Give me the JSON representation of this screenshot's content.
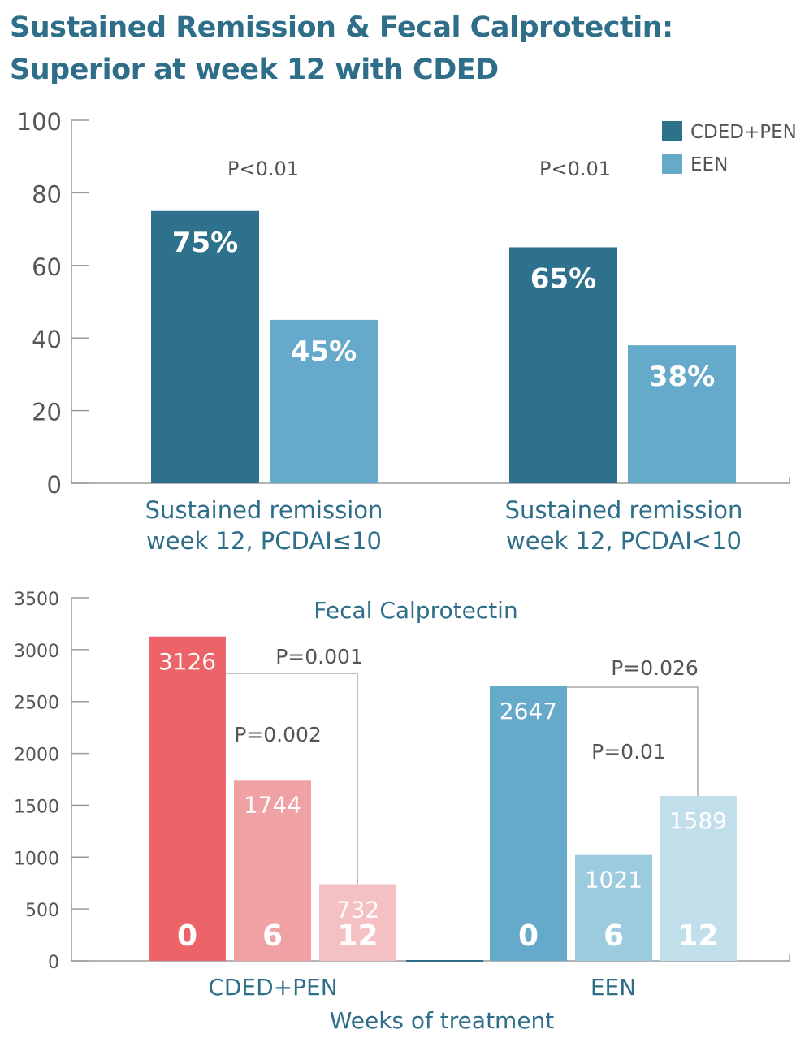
{
  "title": {
    "line1": "Sustained Remission & Fecal Calprotectin:",
    "line2": "Superior at week 12 with CDED"
  },
  "colors": {
    "title": "#2e6e89",
    "cded_pen": "#2e718c",
    "een": "#66aacb",
    "cded_week0": "#ec6468",
    "cded_week6": "#f0a1a4",
    "cded_week12": "#f4c0c2",
    "een_week0": "#66aacb",
    "een_week6": "#9ccbe0",
    "een_week12": "#c0dfea",
    "axis": "#9a9a9a",
    "text_gray": "#555555",
    "text_teal": "#2e6e89"
  },
  "chart_data": [
    {
      "type": "bar",
      "categories": [
        "Sustained remission\nweek 12, PCDAI≤10",
        "Sustained remission\nweek 12, PCDAI<10"
      ],
      "series": [
        {
          "name": "CDED+PEN",
          "values": [
            75,
            65
          ],
          "labels": [
            "75%",
            "65%"
          ]
        },
        {
          "name": "EEN",
          "values": [
            45,
            38
          ],
          "labels": [
            "45%",
            "38%"
          ]
        }
      ],
      "annotations": [
        "P<0.01",
        "P<0.01"
      ],
      "ylim": [
        0,
        100
      ],
      "yticks": [
        "0",
        "20",
        "40",
        "60",
        "80",
        "100"
      ],
      "legend": "top-right"
    },
    {
      "type": "bar",
      "title": "Fecal Calprotectin",
      "xlabel": "Weeks of treatment",
      "groups": [
        {
          "name": "CDED+PEN",
          "weeks": [
            "0",
            "6",
            "12"
          ],
          "values": [
            3126,
            1744,
            732
          ]
        },
        {
          "name": "EEN",
          "weeks": [
            "0",
            "6",
            "12"
          ],
          "values": [
            2647,
            1021,
            1589
          ]
        }
      ],
      "annotations": [
        {
          "text": "P=0.001",
          "group": 0,
          "from": 0,
          "to": 2,
          "bracket": true
        },
        {
          "text": "P=0.002",
          "group": 0,
          "bracket": false
        },
        {
          "text": "P=0.026",
          "group": 1,
          "from": 0,
          "to": 2,
          "bracket": true
        },
        {
          "text": "P=0.01",
          "group": 1,
          "bracket": false
        }
      ],
      "ylim": [
        0,
        3500
      ],
      "yticks": [
        "0",
        "500",
        "1000",
        "1500",
        "2000",
        "2500",
        "3000",
        "3500"
      ]
    }
  ]
}
